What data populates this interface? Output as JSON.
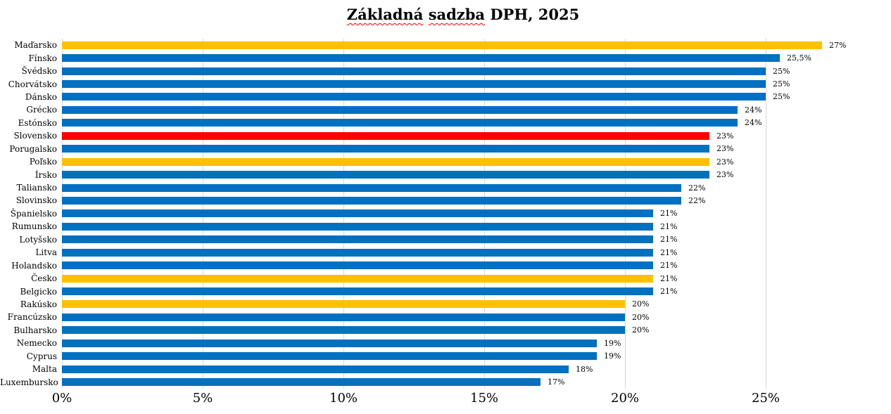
{
  "title": {
    "word1": "Základná",
    "word2": "sadzba",
    "rest": "DPH, 2025"
  },
  "chart_data": {
    "type": "bar",
    "orientation": "horizontal",
    "title": "Základná sadzba DPH, 2025",
    "xlabel": "",
    "ylabel": "",
    "xlim": [
      0,
      29.45
    ],
    "grid": true,
    "legend": false,
    "unit": "%",
    "categories": [
      "Maďarsko",
      "Fínsko",
      "Švédsko",
      "Chorvátsko",
      "Dánsko",
      "Grécko",
      "Estónsko",
      "Slovensko",
      "Porugalsko",
      "Poľsko",
      "Írsko",
      "Taliansko",
      "Slovinsko",
      "Španielsko",
      "Rumunsko",
      "Lotyšsko",
      "Litva",
      "Holandsko",
      "Česko",
      "Belgicko",
      "Rakúsko",
      "Francúzsko",
      "Bulharsko",
      "Nemecko",
      "Cyprus",
      "Malta",
      "Luxembursko"
    ],
    "values": [
      27,
      25.5,
      25,
      25,
      25,
      24,
      24,
      23,
      23,
      23,
      23,
      22,
      22,
      21,
      21,
      21,
      21,
      21,
      21,
      21,
      20,
      20,
      20,
      19,
      19,
      18,
      17
    ],
    "value_labels": [
      "27%",
      "25,5%",
      "25%",
      "25%",
      "25%",
      "24%",
      "24%",
      "23%",
      "23%",
      "23%",
      "23%",
      "22%",
      "22%",
      "21%",
      "21%",
      "21%",
      "21%",
      "21%",
      "21%",
      "21%",
      "20%",
      "20%",
      "20%",
      "19%",
      "19%",
      "18%",
      "17%"
    ],
    "bar_colors": [
      "#FFC000",
      "#0070C0",
      "#0070C0",
      "#0070C0",
      "#0070C0",
      "#0070C0",
      "#0070C0",
      "#FF0000",
      "#0070C0",
      "#FFC000",
      "#0070C0",
      "#0070C0",
      "#0070C0",
      "#0070C0",
      "#0070C0",
      "#0070C0",
      "#0070C0",
      "#0070C0",
      "#FFC000",
      "#0070C0",
      "#FFC000",
      "#0070C0",
      "#0070C0",
      "#0070C0",
      "#0070C0",
      "#0070C0",
      "#0070C0"
    ],
    "x_ticks": [
      {
        "label": "0%",
        "value": 0
      },
      {
        "label": "5%",
        "value": 5
      },
      {
        "label": "10%",
        "value": 10
      },
      {
        "label": "15%",
        "value": 15
      },
      {
        "label": "20%",
        "value": 20
      },
      {
        "label": "25%",
        "value": 25
      }
    ],
    "colors": {
      "default_bar": "#0070C0",
      "highlight_red": "#FF0000",
      "highlight_gold": "#FFC000",
      "gridline": "#d9d9d9",
      "text": "#000000"
    },
    "highlights": {
      "red": [
        "Slovensko"
      ],
      "gold": [
        "Maďarsko",
        "Poľsko",
        "Česko",
        "Rakúsko"
      ]
    }
  }
}
